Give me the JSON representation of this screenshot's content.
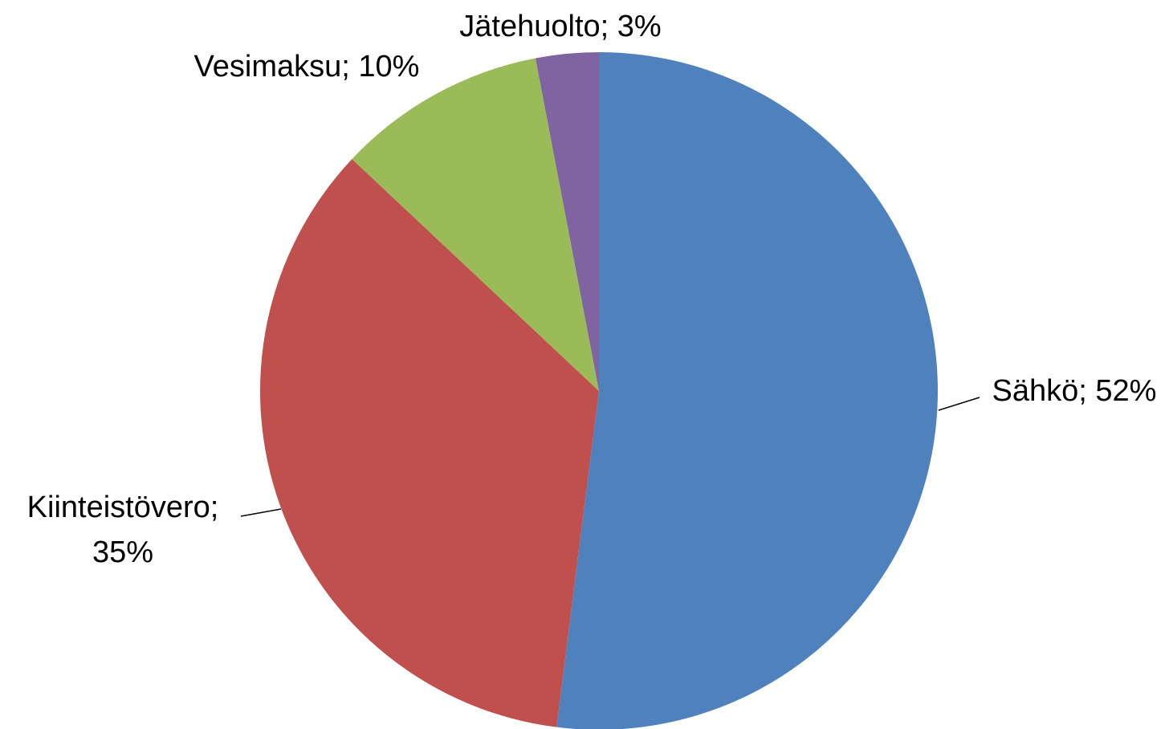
{
  "chart_data": {
    "type": "pie",
    "categories": [
      "Sähkö",
      "Kiinteistövero",
      "Vesimaksu",
      "Jätehuolto"
    ],
    "values": [
      52,
      35,
      10,
      3
    ],
    "value_labels": [
      "Sähkö; 52%",
      "Kiinteistövero; 35%",
      "Vesimaksu; 10%",
      "Jätehuolto; 3%"
    ],
    "colors": [
      "#4f81bd",
      "#c0504d",
      "#9bbb59",
      "#8064a2"
    ]
  }
}
